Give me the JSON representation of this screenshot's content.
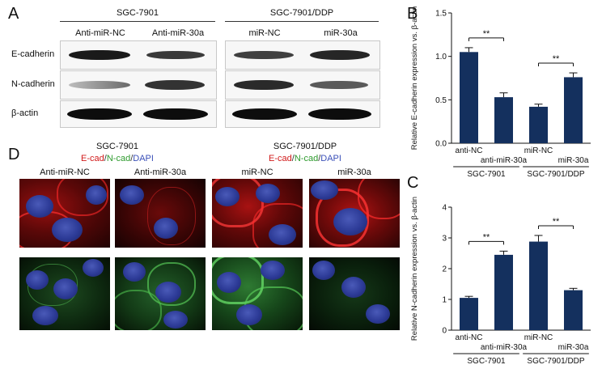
{
  "panels": {
    "A": "A",
    "B": "B",
    "C": "C",
    "D": "D"
  },
  "blot": {
    "group1": "SGC-7901",
    "group2": "SGC-7901/DDP",
    "lanes": [
      "Anti-miR-NC",
      "Anti-miR-30a",
      "miR-NC",
      "miR-30a"
    ],
    "rows": [
      "E-cadherin",
      "N-cadherin",
      "β-actin"
    ],
    "intensity": {
      "E-cadherin": [
        1.0,
        0.6,
        0.55,
        0.85
      ],
      "N-cadherin": [
        0.45,
        0.8,
        0.85,
        0.5
      ],
      "β-actin": [
        1.0,
        1.0,
        1.0,
        1.0
      ]
    }
  },
  "if_panel": {
    "groups": [
      "SGC-7901",
      "SGC-7901/DDP"
    ],
    "stain_parts": [
      "E-cad",
      "/",
      "N-cad",
      "/",
      "DAPI"
    ],
    "stain_colors": {
      "E-cad": "#d11a1a",
      "N-cad": "#2e9b2e",
      "DAPI": "#3a4fb8",
      "slash": "#333333"
    },
    "columns": [
      "Anti-miR-NC",
      "Anti-miR-30a",
      "miR-NC",
      "miR-30a"
    ]
  },
  "chart_data": [
    {
      "type": "bar",
      "panel": "B",
      "categories": [
        "anti-NC",
        "anti-miR-30a",
        "miR-NC",
        "miR-30a"
      ],
      "groups": [
        {
          "label": "SGC-7901",
          "members": [
            0,
            1
          ]
        },
        {
          "label": "SGC-7901/DDP",
          "members": [
            2,
            3
          ]
        }
      ],
      "values": [
        1.05,
        0.53,
        0.42,
        0.76
      ],
      "errors": [
        0.05,
        0.05,
        0.03,
        0.05
      ],
      "ylabel": "Relative E-cadherin expression vs. β-actin",
      "ylim": [
        0,
        1.5
      ],
      "yticks": [
        "0.0",
        "0.5",
        "1.0",
        "1.5"
      ],
      "yticks_values": [
        0,
        0.5,
        1.0,
        1.5
      ],
      "significance": [
        {
          "pair": [
            0,
            1
          ],
          "label": "**"
        },
        {
          "pair": [
            2,
            3
          ],
          "label": "**"
        }
      ],
      "bar_color": "#14305e"
    },
    {
      "type": "bar",
      "panel": "C",
      "categories": [
        "anti-NC",
        "anti-miR-30a",
        "miR-NC",
        "miR-30a"
      ],
      "groups": [
        {
          "label": "SGC-7901",
          "members": [
            0,
            1
          ]
        },
        {
          "label": "SGC-7901/DDP",
          "members": [
            2,
            3
          ]
        }
      ],
      "values": [
        1.05,
        2.45,
        2.88,
        1.3
      ],
      "errors": [
        0.05,
        0.12,
        0.2,
        0.06
      ],
      "ylabel": "Relative N-cadherin expression vs. β-actin",
      "ylim": [
        0,
        4
      ],
      "yticks": [
        "0",
        "1",
        "2",
        "3",
        "4"
      ],
      "yticks_values": [
        0,
        1,
        2,
        3,
        4
      ],
      "significance": [
        {
          "pair": [
            0,
            1
          ],
          "label": "**"
        },
        {
          "pair": [
            2,
            3
          ],
          "label": "**"
        }
      ],
      "bar_color": "#14305e"
    }
  ]
}
